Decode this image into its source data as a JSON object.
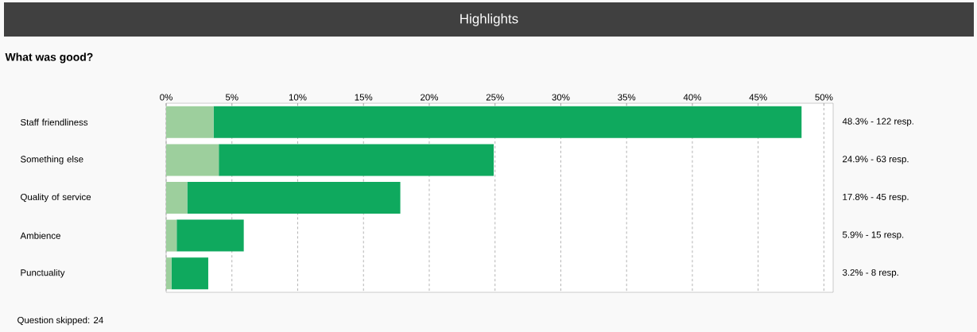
{
  "chart_data": {
    "type": "bar",
    "orientation": "horizontal",
    "stacked": true,
    "title": "Highlights",
    "subtitle": "What was good?",
    "categories": [
      "Staff friendliness",
      "Something else",
      "Quality of service",
      "Ambience",
      "Punctuality"
    ],
    "series": [
      {
        "color": "#9dcf9d",
        "values": [
          3.6,
          4.0,
          1.6,
          0.8,
          0.4
        ]
      },
      {
        "color": "#0fa95e",
        "values": [
          44.7,
          20.9,
          16.2,
          5.1,
          2.8
        ]
      }
    ],
    "value_labels": [
      "48.3% - 122 resp.",
      "24.9% - 63 resp.",
      "17.8% - 45 resp.",
      "5.9% - 15 resp.",
      "3.2% - 8 resp."
    ],
    "xlim": [
      0,
      50.7
    ],
    "xticks": [
      {
        "value": 0,
        "label": "0%"
      },
      {
        "value": 5,
        "label": "5%"
      },
      {
        "value": 10,
        "label": "10%"
      },
      {
        "value": 15,
        "label": "15%"
      },
      {
        "value": 20,
        "label": "20%"
      },
      {
        "value": 25,
        "label": "25%"
      },
      {
        "value": 30,
        "label": "30%"
      },
      {
        "value": 35,
        "label": "35%"
      },
      {
        "value": 40,
        "label": "40%"
      },
      {
        "value": 45,
        "label": "45%"
      },
      {
        "value": 50,
        "label": "50%"
      }
    ],
    "grid": "x",
    "annotations": [
      "Question skipped: 24"
    ]
  }
}
